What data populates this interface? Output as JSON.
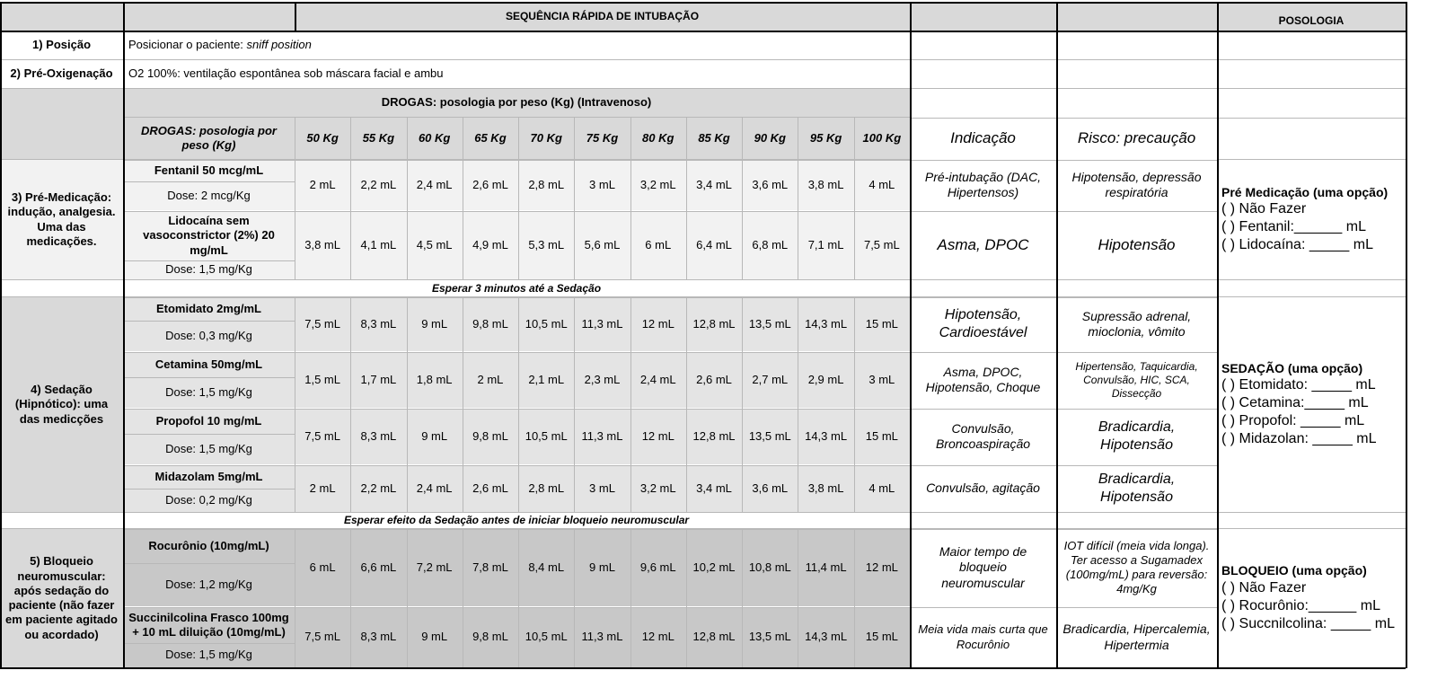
{
  "header": {
    "title": "SEQUÊNCIA RÁPIDA DE INTUBAÇÃO",
    "posologia": "POSOLOGIA"
  },
  "steps": {
    "posicao_label": "1) Posição",
    "posicao_text_prefix": "Posicionar o paciente: ",
    "posicao_text_italic": "sniff position",
    "preoxi_label": "2) Pré-Oxigenação",
    "preoxi_text": "O2 100%: ventilação espontânea sob máscara facial e ambu"
  },
  "drugs_header": {
    "title": "DROGAS: posologia por peso (Kg) (Intravenoso)",
    "col_label": "DROGAS: posologia por peso (Kg)",
    "weights": [
      "50 Kg",
      "55  Kg",
      "60  Kg",
      "65  Kg",
      "70  Kg",
      "75  Kg",
      "80  Kg",
      "85  Kg",
      "90  Kg",
      "95  Kg",
      "100  Kg"
    ],
    "indicacao": "Indicação",
    "risco": "Risco: precaução"
  },
  "groups": {
    "premed": "3) Pré-Medicação: indução, analgesia. Uma das medicações.",
    "sedacao": "4) Sedação (Hipnótico): uma das medicções",
    "bloqueio": "5) Bloqueio neuromuscular: após sedação do paciente (não fazer em paciente agitado ou acordado)"
  },
  "separators": {
    "wait_sedation": "Esperar 3 minutos até a Sedação",
    "wait_block": "Esperar efeito da Sedação antes de iniciar bloqueio neuromuscular"
  },
  "drugs": [
    {
      "name": "Fentanil 50 mcg/mL",
      "dose": "Dose: 2 mcg/Kg",
      "values": [
        "2 mL",
        "2,2 mL",
        "2,4 mL",
        "2,6 mL",
        "2,8 mL",
        "3 mL",
        "3,2 mL",
        "3,4 mL",
        "3,6 mL",
        "3,8 mL",
        "4 mL"
      ],
      "indicacao": "Pré-intubação (DAC, Hipertensos)",
      "risco": "Hipotensão, depressão respiratória"
    },
    {
      "name": "Lidocaína sem vasoconstrictor (2%) 20 mg/mL",
      "dose": "Dose: 1,5 mg/Kg",
      "values": [
        "3,8  mL",
        "4,1 mL",
        "4,5 mL",
        "4,9 mL",
        "5,3 mL",
        "5,6 mL",
        "6 mL",
        "6,4 mL",
        "6,8 mL",
        "7,1 mL",
        "7,5 mL"
      ],
      "indicacao": "Asma, DPOC",
      "risco": "Hipotensão"
    },
    {
      "name": "Etomidato 2mg/mL",
      "dose": "Dose: 0,3 mg/Kg",
      "values": [
        "7,5 mL",
        "8,3 mL",
        "9 mL",
        "9,8 mL",
        "10,5 mL",
        "11,3 mL",
        "12 mL",
        "12,8 mL",
        "13,5 mL",
        "14,3  mL",
        "15 mL"
      ],
      "indicacao": "Hipotensão, Cardioestável",
      "risco": "Supressão adrenal, mioclonia, vômito"
    },
    {
      "name": "Cetamina 50mg/mL",
      "dose": "Dose: 1,5 mg/Kg",
      "values": [
        "1,5 mL",
        "1,7 mL",
        "1,8 mL",
        "2 mL",
        "2,1 mL",
        "2,3 mL",
        "2,4 mL",
        "2,6 mL",
        "2,7 mL",
        "2,9  mL",
        "3 mL"
      ],
      "indicacao": "Asma, DPOC, Hipotensão, Choque",
      "risco": "Hipertensão, Taquicardia, Convulsão, HIC, SCA, Dissecção"
    },
    {
      "name": "Propofol 10 mg/mL",
      "dose": "Dose: 1,5 mg/Kg",
      "values": [
        "7,5 mL",
        "8,3 mL",
        "9 mL",
        "9,8 mL",
        "10,5 mL",
        "11,3 mL",
        "12 mL",
        "12,8 mL",
        "13,5 mL",
        "14,3  mL",
        "15 mL"
      ],
      "indicacao": "Convulsão, Broncoaspiração",
      "risco": "Bradicardia, Hipotensão"
    },
    {
      "name": "Midazolam 5mg/mL",
      "dose": "Dose: 0,2 mg/Kg",
      "values": [
        "2 mL",
        "2,2 mL",
        "2,4 mL",
        "2,6 mL",
        "2,8 mL",
        "3 mL",
        "3,2 mL",
        "3,4 mL",
        "3,6 mL",
        "3,8 mL",
        "4 mL"
      ],
      "indicacao": "Convulsão, agitação",
      "risco": "Bradicardia, Hipotensão"
    },
    {
      "name": "Rocurônio (10mg/mL)",
      "dose": "Dose: 1,2 mg/Kg",
      "values": [
        "6 mL",
        "6,6 mL",
        "7,2 mL",
        "7,8 mL",
        "8,4 mL",
        "9 mL",
        "9,6 mL",
        "10,2 mL",
        "10,8 mL",
        "11,4 mL",
        "12 mL"
      ],
      "indicacao": "Maior tempo de bloqueio neuromuscular",
      "risco": "IOT difícil (meia vida longa). Ter acesso a Sugamadex (100mg/mL) para reversão: 4mg/Kg"
    },
    {
      "name": "Succinilcolina Frasco 100mg + 10 mL diluição (10mg/mL)",
      "dose": "Dose: 1,5 mg/Kg",
      "values": [
        "7,5 mL",
        "8,3 mL",
        "9 mL",
        "9,8 mL",
        "10,5 mL",
        "11,3 mL",
        "12 mL",
        "12,8 mL",
        "13,5 mL",
        "14,3 mL",
        "15 mL"
      ],
      "indicacao": "Meia vida mais curta que Rocurônio",
      "risco": "Bradicardia, Hipercalemia, Hipertermia"
    }
  ],
  "posologia": {
    "premed": {
      "title": "Pré Medicação (uma opção)",
      "lines": [
        "( ) Não Fazer",
        "( ) Fentanil:______ mL",
        "( ) Lidocaína: _____ mL"
      ]
    },
    "sedacao": {
      "title": "SEDAÇÃO (uma opção)",
      "lines": [
        "( ) Etomidato: _____ mL",
        "( ) Cetamina:_____ mL",
        "( ) Propofol: _____ mL",
        "( ) Midazolan: _____ mL"
      ]
    },
    "bloqueio": {
      "title": "BLOQUEIO (uma opção)",
      "lines": [
        "( ) Não Fazer",
        "( ) Rocurônio:______ mL",
        "( ) Succnilcolina: _____ mL"
      ]
    }
  }
}
